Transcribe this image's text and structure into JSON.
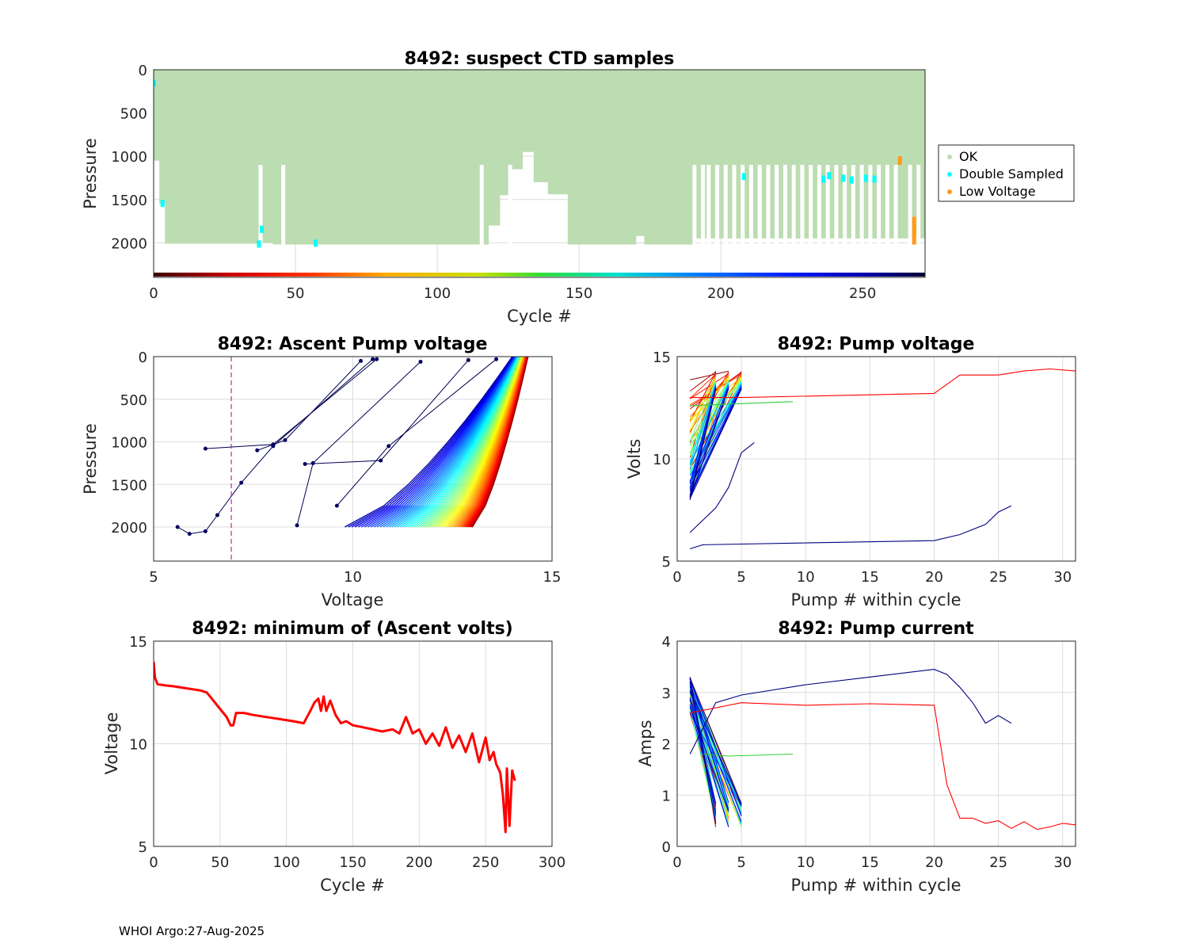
{
  "footer": "WHOI Argo:27-Aug-2025",
  "chart_data": [
    {
      "id": "ctd",
      "type": "area",
      "title": "8492: suspect CTD samples",
      "xlabel": "Cycle #",
      "ylabel": "Pressure",
      "xlim": [
        0,
        272
      ],
      "ylim": [
        2400,
        0
      ],
      "xticks": [
        "0",
        "50",
        "100",
        "150",
        "200",
        "250"
      ],
      "yticks": [
        "0",
        "500",
        "1000",
        "1500",
        "2000"
      ],
      "legend": {
        "position": "right",
        "entries": [
          {
            "label": "OK",
            "color": "#bcdcb1"
          },
          {
            "label": "Double Sampled",
            "color": "#00ffff"
          },
          {
            "label": "Low Voltage",
            "color": "#ff9a1a"
          }
        ]
      },
      "profile_depth_segments": [
        {
          "from": 0,
          "to": 2,
          "p": 1050
        },
        {
          "from": 2,
          "to": 4,
          "p": 1550
        },
        {
          "from": 4,
          "to": 38,
          "p": 2010
        },
        {
          "from": 38,
          "to": 42,
          "p": 2000
        },
        {
          "from": 42,
          "to": 118,
          "p": 2020
        },
        {
          "from": 118,
          "to": 122,
          "p": 1800
        },
        {
          "from": 122,
          "to": 126,
          "p": 1450
        },
        {
          "from": 126,
          "to": 130,
          "p": 1150
        },
        {
          "from": 130,
          "to": 134,
          "p": 950
        },
        {
          "from": 134,
          "to": 139,
          "p": 1300
        },
        {
          "from": 139,
          "to": 146,
          "p": 1440
        },
        {
          "from": 146,
          "to": 170,
          "p": 2020
        },
        {
          "from": 170,
          "to": 173,
          "p": 1920
        },
        {
          "from": 173,
          "to": 190,
          "p": 2020
        },
        {
          "from": 190,
          "to": 272,
          "p": 1950
        }
      ],
      "gaps": [
        37,
        45,
        115,
        125,
        190,
        193,
        195,
        198,
        201,
        204,
        207,
        210,
        213,
        216,
        219,
        222,
        225,
        228,
        231,
        234,
        237,
        240,
        243,
        246,
        249,
        252,
        255,
        258,
        261,
        266,
        269
      ],
      "double_sampled": [
        {
          "cycle": 0,
          "p": 150
        },
        {
          "cycle": 3,
          "p": 1540
        },
        {
          "cycle": 37,
          "p": 2010
        },
        {
          "cycle": 38,
          "p": 1840
        },
        {
          "cycle": 57,
          "p": 2000
        },
        {
          "cycle": 208,
          "p": 1230
        },
        {
          "cycle": 236,
          "p": 1260
        },
        {
          "cycle": 238,
          "p": 1220
        },
        {
          "cycle": 243,
          "p": 1250
        },
        {
          "cycle": 246,
          "p": 1270
        },
        {
          "cycle": 251,
          "p": 1250
        },
        {
          "cycle": 254,
          "p": 1260
        }
      ],
      "low_voltage": [
        {
          "cycle": 263,
          "p_from": 1000,
          "p_to": 1100
        },
        {
          "cycle": 268,
          "p_from": 1700,
          "p_to": 2020
        }
      ],
      "colorbar_range": [
        0,
        272
      ]
    },
    {
      "id": "ascent",
      "type": "line",
      "title": "8492: Ascent Pump voltage",
      "xlabel": "Voltage",
      "ylabel": "Pressure",
      "xlim": [
        5,
        15
      ],
      "ylim": [
        2400,
        0
      ],
      "xticks": [
        "5",
        "10",
        "15"
      ],
      "yticks": [
        "0",
        "500",
        "1000",
        "1500",
        "2000"
      ],
      "threshold_voltage": 6.95,
      "profile_family": {
        "cycles": [
          0,
          272
        ],
        "surface_voltage": [
          14.4,
          14.0
        ],
        "deep_voltage": [
          13.0,
          9.8
        ],
        "pressure_range": [
          2000,
          0
        ]
      },
      "outlier_paths": [
        [
          [
            5.6,
            2000
          ],
          [
            5.9,
            2080
          ],
          [
            6.3,
            2050
          ],
          [
            6.6,
            1860
          ],
          [
            7.2,
            1480
          ],
          [
            8.0,
            1050
          ],
          [
            10.5,
            30
          ]
        ],
        [
          [
            6.3,
            1080
          ],
          [
            8.0,
            1030
          ],
          [
            10.6,
            30
          ]
        ],
        [
          [
            7.6,
            1100
          ],
          [
            8.3,
            980
          ],
          [
            10.2,
            50
          ]
        ],
        [
          [
            8.6,
            1980
          ],
          [
            9.0,
            1250
          ],
          [
            11.7,
            60
          ]
        ],
        [
          [
            8.8,
            1260
          ],
          [
            10.7,
            1220
          ],
          [
            12.9,
            40
          ]
        ],
        [
          [
            9.6,
            1750
          ],
          [
            10.9,
            1050
          ],
          [
            13.6,
            30
          ]
        ]
      ]
    },
    {
      "id": "pumpv",
      "type": "line",
      "title": "8492: Pump voltage",
      "xlabel": "Pump # within cycle",
      "ylabel": "Volts",
      "xlim": [
        0,
        31
      ],
      "ylim": [
        5,
        15
      ],
      "xticks": [
        "0",
        "5",
        "10",
        "15",
        "20",
        "25",
        "30"
      ],
      "yticks": [
        "5",
        "10",
        "15"
      ],
      "series": [
        {
          "name": "long-red",
          "color": "#ff0000",
          "x": [
            1,
            5,
            20,
            22,
            25,
            27,
            29,
            31
          ],
          "y": [
            13.0,
            13.0,
            13.2,
            14.1,
            14.1,
            14.3,
            14.4,
            14.3
          ]
        },
        {
          "name": "long-navy",
          "color": "#000080",
          "x": [
            1,
            2,
            20,
            22,
            24,
            25,
            26
          ],
          "y": [
            5.6,
            5.8,
            6.0,
            6.3,
            6.8,
            7.4,
            7.7
          ]
        },
        {
          "name": "green",
          "color": "#33cc33",
          "x": [
            1,
            5,
            9
          ],
          "y": [
            12.6,
            12.7,
            12.8
          ]
        },
        {
          "name": "navy-short",
          "color": "#000080",
          "x": [
            1,
            3,
            4,
            5,
            6
          ],
          "y": [
            6.4,
            7.6,
            8.6,
            10.3,
            10.8
          ]
        }
      ]
    },
    {
      "id": "minv",
      "type": "line",
      "title": "8492: minimum of (Ascent volts)",
      "xlabel": "Cycle #",
      "ylabel": "Voltage",
      "xlim": [
        0,
        300
      ],
      "ylim": [
        5,
        15
      ],
      "xticks": [
        "0",
        "50",
        "100",
        "150",
        "200",
        "250",
        "300"
      ],
      "yticks": [
        "5",
        "10",
        "15"
      ],
      "series": [
        {
          "name": "min ascent volts",
          "color": "#ff0000",
          "x": [
            0,
            1,
            3,
            8,
            15,
            25,
            35,
            40,
            45,
            50,
            55,
            58,
            60,
            62,
            68,
            75,
            85,
            95,
            105,
            113,
            118,
            121,
            124,
            126,
            128,
            130,
            133,
            137,
            141,
            145,
            150,
            158,
            165,
            172,
            180,
            185,
            190,
            195,
            200,
            205,
            210,
            215,
            220,
            225,
            230,
            235,
            240,
            245,
            250,
            253,
            256,
            258,
            261,
            263,
            265,
            266,
            268,
            270,
            272
          ],
          "y": [
            14.0,
            13.2,
            12.9,
            12.85,
            12.8,
            12.7,
            12.6,
            12.5,
            12.1,
            11.7,
            11.3,
            10.9,
            10.9,
            11.5,
            11.5,
            11.4,
            11.3,
            11.2,
            11.1,
            11.0,
            11.6,
            12.0,
            12.2,
            11.6,
            12.3,
            11.6,
            12.1,
            11.4,
            11.0,
            11.1,
            10.9,
            10.8,
            10.7,
            10.6,
            10.7,
            10.5,
            11.3,
            10.5,
            10.7,
            10.0,
            10.5,
            9.9,
            10.8,
            9.8,
            10.4,
            9.6,
            10.5,
            9.1,
            10.3,
            9.2,
            9.6,
            9.0,
            8.6,
            7.5,
            5.7,
            8.8,
            6.0,
            8.7,
            8.2
          ]
        }
      ]
    },
    {
      "id": "pumpc",
      "type": "line",
      "title": "8492: Pump current",
      "xlabel": "Pump # within cycle",
      "ylabel": "Amps",
      "xlim": [
        0,
        31
      ],
      "ylim": [
        0,
        4
      ],
      "xticks": [
        "0",
        "5",
        "10",
        "15",
        "20",
        "25",
        "30"
      ],
      "yticks": [
        "0",
        "1",
        "2",
        "3",
        "4"
      ],
      "series": [
        {
          "name": "long-navy",
          "color": "#000080",
          "x": [
            1,
            3,
            5,
            10,
            15,
            20,
            21,
            22,
            23,
            24,
            25,
            26
          ],
          "y": [
            1.8,
            2.8,
            2.95,
            3.15,
            3.3,
            3.45,
            3.35,
            3.1,
            2.8,
            2.4,
            2.55,
            2.4
          ]
        },
        {
          "name": "long-red",
          "color": "#ff0000",
          "x": [
            1,
            5,
            10,
            15,
            20,
            21,
            22,
            23,
            24,
            25,
            26,
            27,
            28,
            29,
            30,
            31
          ],
          "y": [
            2.6,
            2.8,
            2.75,
            2.78,
            2.75,
            1.2,
            0.55,
            0.55,
            0.45,
            0.5,
            0.35,
            0.48,
            0.33,
            0.38,
            0.45,
            0.42
          ]
        },
        {
          "name": "green",
          "color": "#33cc33",
          "x": [
            2,
            4,
            9
          ],
          "y": [
            1.8,
            1.76,
            1.8
          ]
        }
      ]
    }
  ]
}
